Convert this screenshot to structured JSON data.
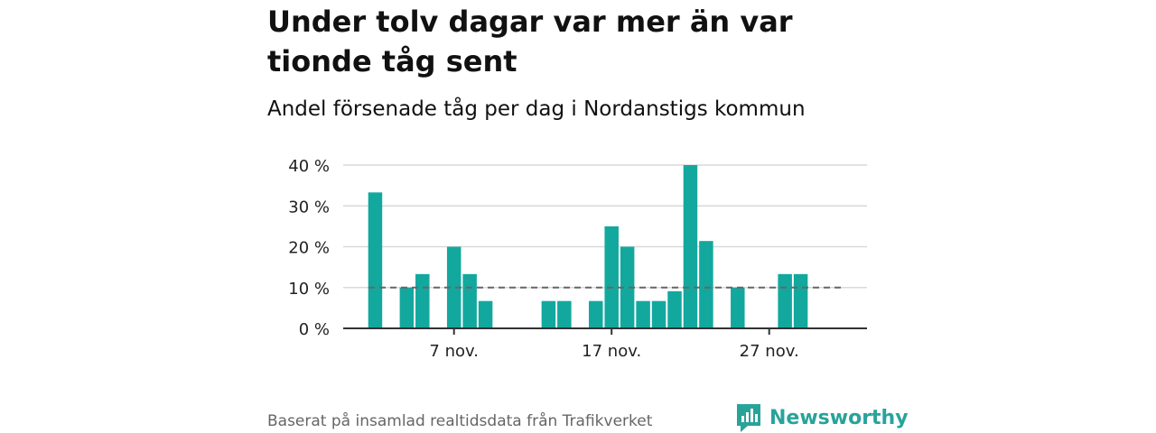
{
  "title": "Under tolv dagar var mer än var tionde tåg sent",
  "subtitle": "Andel försenade tåg per dag i Nordanstigs kommun",
  "source": "Baserat på insamlad realtidsdata från Trafikverket",
  "brand": "Newsworthy",
  "colors": {
    "bar": "#13a89e",
    "grid": "#d9d9d9",
    "reference_line": "#666666",
    "brand": "#28a39a"
  },
  "chart_data": {
    "type": "bar",
    "title": "Andel försenade tåg per dag i Nordanstigs kommun",
    "xlabel": "",
    "ylabel": "",
    "ylim": [
      0,
      40
    ],
    "y_ticks": [
      "0 %",
      "10 %",
      "20 %",
      "30 %",
      "40 %"
    ],
    "x_ticks": [
      "7 nov.",
      "17 nov.",
      "27 nov."
    ],
    "x_range": [
      "1 nov.",
      "30 nov."
    ],
    "reference_line": 10,
    "grid": true,
    "categories": [
      "2 nov.",
      "3 nov.",
      "4 nov.",
      "5 nov.",
      "6 nov.",
      "7 nov.",
      "8 nov.",
      "9 nov.",
      "10 nov.",
      "11 nov.",
      "12 nov.",
      "13 nov.",
      "14 nov.",
      "15 nov.",
      "16 nov.",
      "17 nov.",
      "18 nov.",
      "19 nov.",
      "20 nov.",
      "21 nov.",
      "22 nov.",
      "23 nov.",
      "24 nov.",
      "25 nov.",
      "26 nov.",
      "27 nov.",
      "28 nov.",
      "29 nov."
    ],
    "values": [
      33.3,
      0,
      10,
      13.3,
      0,
      20,
      13.3,
      6.7,
      0,
      0,
      0,
      6.7,
      6.7,
      0,
      6.7,
      25,
      20,
      6.7,
      6.7,
      9.1,
      40,
      21.4,
      0,
      10,
      0,
      0,
      13.3,
      13.3
    ]
  }
}
